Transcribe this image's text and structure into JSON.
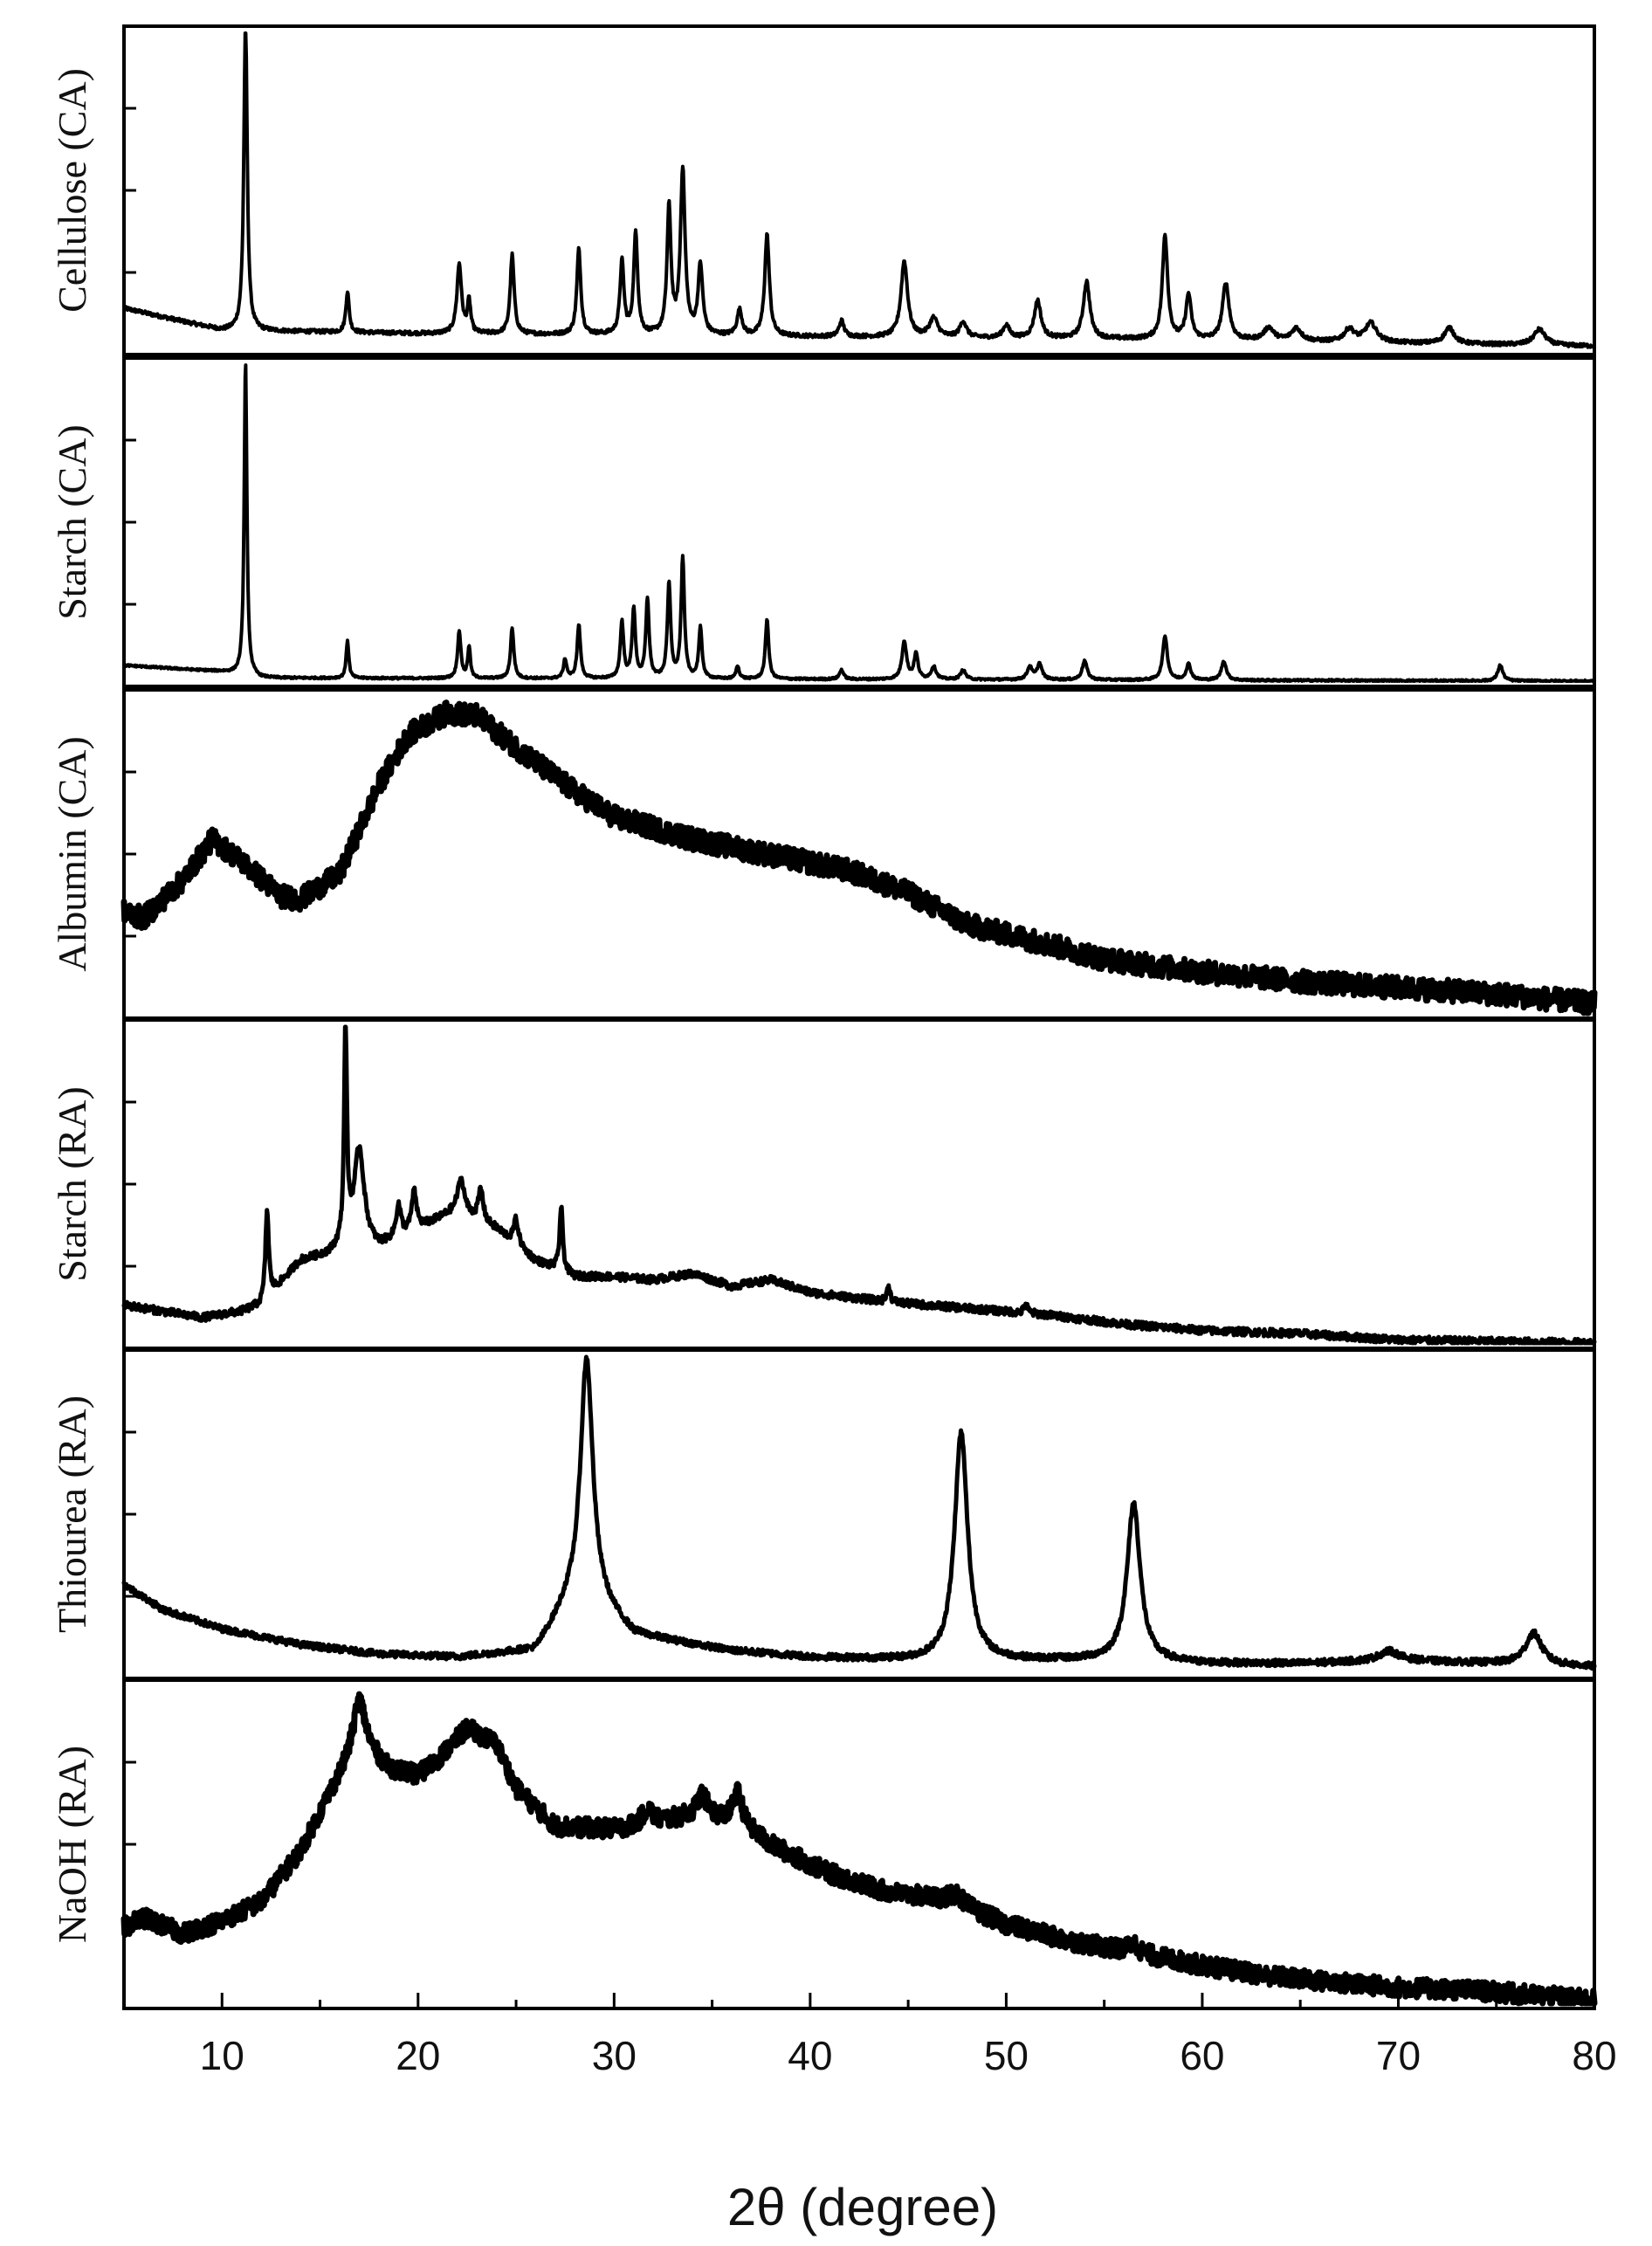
{
  "chart_data": {
    "type": "line",
    "xlabel": "2θ (degree)",
    "xlim": [
      5,
      80
    ],
    "xticks": [
      10,
      20,
      30,
      40,
      50,
      60,
      70,
      80
    ],
    "xtick_labels": [
      "10",
      "20",
      "30",
      "40",
      "50",
      "60",
      "70",
      "80"
    ],
    "ylabel": "",
    "grid": false,
    "legend": "none",
    "panels": [
      {
        "label": "Cellulose (CA)",
        "baseline": [
          [
            5,
            0.13
          ],
          [
            10,
            0.06
          ],
          [
            20,
            0.05
          ],
          [
            40,
            0.04
          ],
          [
            60,
            0.03
          ],
          [
            80,
            0.01
          ]
        ],
        "peaks": [
          [
            11.2,
            1.0,
            0.1
          ],
          [
            16.4,
            0.13,
            0.1
          ],
          [
            22.1,
            0.22,
            0.14
          ],
          [
            22.6,
            0.1,
            0.1
          ],
          [
            24.8,
            0.25,
            0.12
          ],
          [
            28.2,
            0.27,
            0.12
          ],
          [
            30.4,
            0.23,
            0.12
          ],
          [
            31.1,
            0.32,
            0.12
          ],
          [
            32.8,
            0.4,
            0.12
          ],
          [
            33.5,
            0.52,
            0.14
          ],
          [
            34.4,
            0.22,
            0.14
          ],
          [
            36.4,
            0.08,
            0.15
          ],
          [
            37.8,
            0.32,
            0.14
          ],
          [
            41.6,
            0.05,
            0.15
          ],
          [
            44.8,
            0.24,
            0.2
          ],
          [
            46.3,
            0.06,
            0.25
          ],
          [
            47.8,
            0.05,
            0.2
          ],
          [
            50.0,
            0.04,
            0.2
          ],
          [
            51.6,
            0.12,
            0.2
          ],
          [
            54.1,
            0.18,
            0.2
          ],
          [
            58.1,
            0.33,
            0.16
          ],
          [
            59.3,
            0.14,
            0.16
          ],
          [
            61.2,
            0.18,
            0.2
          ],
          [
            63.4,
            0.04,
            0.3
          ],
          [
            64.8,
            0.04,
            0.3
          ],
          [
            67.5,
            0.04,
            0.3
          ],
          [
            68.6,
            0.06,
            0.35
          ],
          [
            72.6,
            0.05,
            0.3
          ],
          [
            77.2,
            0.05,
            0.35
          ]
        ],
        "noise": 0.006,
        "ymax": 1.0,
        "stroke": 4
      },
      {
        "label": "Starch (CA)",
        "baseline": [
          [
            5,
            0.05
          ],
          [
            10,
            0.03
          ],
          [
            12,
            0.01
          ],
          [
            80,
            0.0
          ]
        ],
        "peaks": [
          [
            11.2,
            1.0,
            0.08
          ],
          [
            16.4,
            0.12,
            0.08
          ],
          [
            22.1,
            0.15,
            0.1
          ],
          [
            22.6,
            0.1,
            0.08
          ],
          [
            24.8,
            0.16,
            0.1
          ],
          [
            27.5,
            0.06,
            0.1
          ],
          [
            28.2,
            0.17,
            0.1
          ],
          [
            30.4,
            0.18,
            0.1
          ],
          [
            31.0,
            0.22,
            0.1
          ],
          [
            31.7,
            0.25,
            0.1
          ],
          [
            32.8,
            0.3,
            0.1
          ],
          [
            33.5,
            0.38,
            0.1
          ],
          [
            34.4,
            0.16,
            0.1
          ],
          [
            36.3,
            0.04,
            0.1
          ],
          [
            37.8,
            0.19,
            0.1
          ],
          [
            41.6,
            0.03,
            0.12
          ],
          [
            44.8,
            0.12,
            0.14
          ],
          [
            45.4,
            0.08,
            0.12
          ],
          [
            46.3,
            0.04,
            0.15
          ],
          [
            47.8,
            0.03,
            0.15
          ],
          [
            51.2,
            0.04,
            0.15
          ],
          [
            51.7,
            0.05,
            0.15
          ],
          [
            54.0,
            0.06,
            0.15
          ],
          [
            58.1,
            0.14,
            0.14
          ],
          [
            59.3,
            0.05,
            0.14
          ],
          [
            61.1,
            0.06,
            0.15
          ],
          [
            75.2,
            0.05,
            0.15
          ]
        ],
        "noise": 0.003,
        "ymax": 1.0,
        "stroke": 4
      },
      {
        "label": "Albumin (CA)",
        "baseline": [
          [
            5,
            0.32
          ],
          [
            6,
            0.3
          ],
          [
            8,
            0.42
          ],
          [
            9.5,
            0.55
          ],
          [
            11,
            0.48
          ],
          [
            13,
            0.37
          ],
          [
            14,
            0.36
          ],
          [
            16,
            0.44
          ],
          [
            18,
            0.72
          ],
          [
            19.5,
            0.88
          ],
          [
            21.5,
            0.95
          ],
          [
            23,
            0.94
          ],
          [
            25,
            0.84
          ],
          [
            28,
            0.7
          ],
          [
            30,
            0.62
          ],
          [
            34,
            0.55
          ],
          [
            38,
            0.5
          ],
          [
            42,
            0.45
          ],
          [
            45,
            0.38
          ],
          [
            48,
            0.28
          ],
          [
            52,
            0.22
          ],
          [
            55,
            0.17
          ],
          [
            60,
            0.13
          ],
          [
            65,
            0.1
          ],
          [
            70,
            0.08
          ],
          [
            75,
            0.06
          ],
          [
            80,
            0.03
          ]
        ],
        "peaks": [],
        "noise": 0.035,
        "ymax": 1.0,
        "stroke": 7
      },
      {
        "label": "Starch (RA)",
        "baseline": [
          [
            5,
            0.12
          ],
          [
            7,
            0.1
          ],
          [
            9,
            0.08
          ],
          [
            11,
            0.1
          ],
          [
            12,
            0.12
          ],
          [
            14,
            0.26
          ],
          [
            15.5,
            0.28
          ],
          [
            16.5,
            0.32
          ],
          [
            18,
            0.3
          ],
          [
            20,
            0.36
          ],
          [
            22,
            0.42
          ],
          [
            24,
            0.36
          ],
          [
            26,
            0.26
          ],
          [
            28,
            0.21
          ],
          [
            30,
            0.21
          ],
          [
            32,
            0.2
          ],
          [
            34,
            0.22
          ],
          [
            36,
            0.18
          ],
          [
            38,
            0.2
          ],
          [
            40,
            0.16
          ],
          [
            44,
            0.13
          ],
          [
            48,
            0.11
          ],
          [
            52,
            0.09
          ],
          [
            56,
            0.06
          ],
          [
            60,
            0.04
          ],
          [
            65,
            0.03
          ],
          [
            70,
            0.01
          ],
          [
            80,
            0.0
          ]
        ],
        "peaks": [
          [
            12.3,
            0.28,
            0.1
          ],
          [
            16.3,
            0.7,
            0.08
          ],
          [
            17.0,
            0.3,
            0.3
          ],
          [
            19.0,
            0.1,
            0.15
          ],
          [
            19.8,
            0.12,
            0.15
          ],
          [
            22.2,
            0.1,
            0.2
          ],
          [
            23.2,
            0.1,
            0.15
          ],
          [
            25.0,
            0.08,
            0.15
          ],
          [
            27.3,
            0.2,
            0.1
          ],
          [
            44.0,
            0.05,
            0.1
          ],
          [
            51.0,
            0.03,
            0.1
          ]
        ],
        "noise": 0.012,
        "ymax": 1.0,
        "stroke": 5
      },
      {
        "label": "Thiourea (RA)",
        "baseline": [
          [
            5,
            0.28
          ],
          [
            7,
            0.2
          ],
          [
            10,
            0.14
          ],
          [
            14,
            0.09
          ],
          [
            18,
            0.06
          ],
          [
            22,
            0.05
          ],
          [
            26,
            0.07
          ],
          [
            27.5,
            0.2
          ],
          [
            28.5,
            0.24
          ],
          [
            29.5,
            0.2
          ],
          [
            31,
            0.12
          ],
          [
            33,
            0.1
          ],
          [
            36,
            0.07
          ],
          [
            40,
            0.05
          ],
          [
            45,
            0.04
          ],
          [
            50,
            0.04
          ],
          [
            55,
            0.04
          ],
          [
            60,
            0.03
          ],
          [
            65,
            0.03
          ],
          [
            70,
            0.04
          ],
          [
            75,
            0.03
          ],
          [
            80,
            0.02
          ]
        ],
        "peaks": [
          [
            28.6,
            0.76,
            0.38
          ],
          [
            47.7,
            0.72,
            0.4
          ],
          [
            56.5,
            0.5,
            0.4
          ],
          [
            69.5,
            0.03,
            0.6
          ],
          [
            76.9,
            0.1,
            0.5
          ]
        ],
        "noise": 0.01,
        "ymax": 1.0,
        "stroke": 5
      },
      {
        "label": "NaOH (RA)",
        "baseline": [
          [
            5,
            0.24
          ],
          [
            6,
            0.27
          ],
          [
            8,
            0.22
          ],
          [
            10,
            0.26
          ],
          [
            12,
            0.32
          ],
          [
            14,
            0.48
          ],
          [
            15.5,
            0.66
          ],
          [
            17,
            0.82
          ],
          [
            18.5,
            0.74
          ],
          [
            20,
            0.72
          ],
          [
            21,
            0.77
          ],
          [
            22.5,
            0.87
          ],
          [
            24,
            0.82
          ],
          [
            25,
            0.68
          ],
          [
            27,
            0.56
          ],
          [
            30,
            0.55
          ],
          [
            32,
            0.57
          ],
          [
            34.5,
            0.6
          ],
          [
            36.5,
            0.56
          ],
          [
            38,
            0.5
          ],
          [
            41,
            0.41
          ],
          [
            44,
            0.35
          ],
          [
            47,
            0.33
          ],
          [
            50,
            0.25
          ],
          [
            53,
            0.2
          ],
          [
            56.5,
            0.16
          ],
          [
            60,
            0.12
          ],
          [
            63,
            0.09
          ],
          [
            66,
            0.07
          ],
          [
            70,
            0.05
          ],
          [
            74,
            0.04
          ],
          [
            80,
            0.01
          ]
        ],
        "peaks": [
          [
            17.0,
            0.14,
            0.4
          ],
          [
            31.7,
            0.05,
            0.3
          ],
          [
            34.5,
            0.06,
            0.3
          ],
          [
            36.3,
            0.1,
            0.3
          ],
          [
            47.5,
            0.03,
            0.3
          ],
          [
            56.5,
            0.03,
            0.3
          ]
        ],
        "noise": 0.03,
        "ymax": 1.0,
        "stroke": 7
      }
    ]
  }
}
